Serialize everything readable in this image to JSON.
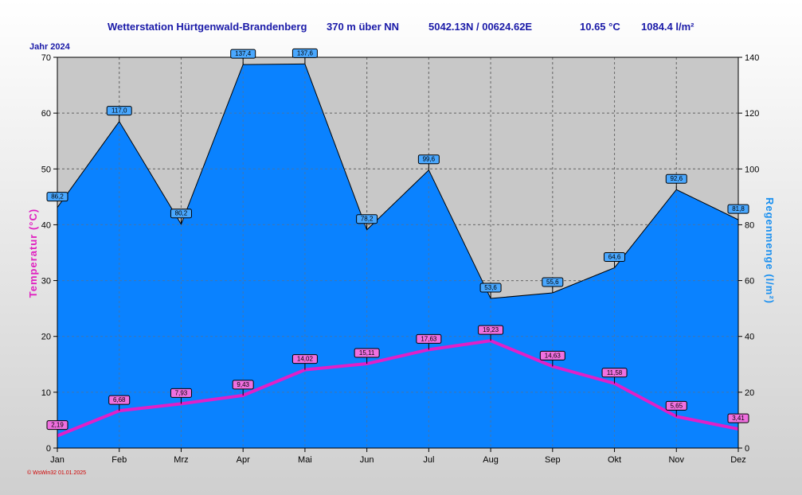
{
  "header": {
    "station": "Wetterstation Hürtgenwald-Brandenberg",
    "altitude": "370 m über NN",
    "coords": "5042.13N / 00624.62E",
    "avg_temp": "10.65 °C",
    "rain_total": "1084.4 l/m²",
    "year_label": "Jahr  2024"
  },
  "footer": "© WsWin32  01.01.2025",
  "chart_data": {
    "type": "area",
    "categories": [
      "Jan",
      "Feb",
      "Mrz",
      "Apr",
      "Mai",
      "Jun",
      "Jul",
      "Aug",
      "Sep",
      "Okt",
      "Nov",
      "Dez"
    ],
    "series": [
      {
        "name": "Regenmenge",
        "axis": "right",
        "kind": "area",
        "color": "#0a82ff",
        "values": [
          86.2,
          117.0,
          80.2,
          137.4,
          137.6,
          78.2,
          99.6,
          53.6,
          55.6,
          64.6,
          92.6,
          81.8
        ],
        "labels": [
          "86,2",
          "117,0",
          "80,2",
          "137,4",
          "137,6",
          "78,2",
          "99,6",
          "53,6",
          "55,6",
          "64,6",
          "92,6",
          "81,8"
        ]
      },
      {
        "name": "Temperatur",
        "axis": "left",
        "kind": "line",
        "color": "#e020c8",
        "values": [
          2.19,
          6.68,
          7.93,
          9.43,
          14.02,
          15.11,
          17.63,
          19.23,
          14.63,
          11.58,
          5.65,
          3.41
        ],
        "labels": [
          "2,19",
          "6,68",
          "7,93",
          "9,43",
          "14,02",
          "15,11",
          "17,63",
          "19,23",
          "14,63",
          "11,58",
          "5,65",
          "3,41"
        ]
      }
    ],
    "ylabel_left": "Temperatur  (°C)",
    "ylabel_right": "Regenmenge  (l/m²)",
    "ylim_left": [
      0,
      70
    ],
    "ylim_right": [
      0,
      140
    ],
    "yticks_left": [
      "0",
      "10",
      "20",
      "30",
      "40",
      "50",
      "60",
      "70"
    ],
    "yticks_right": [
      "0",
      "20",
      "40",
      "60",
      "80",
      "100",
      "120",
      "140"
    ],
    "grid": true
  }
}
